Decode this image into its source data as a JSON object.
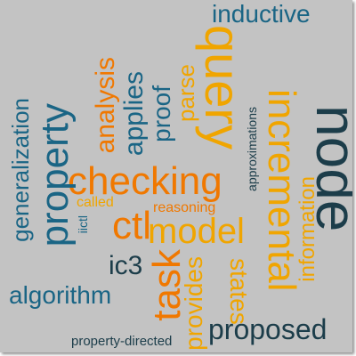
{
  "word_cloud": {
    "words": [
      {
        "text": "node",
        "color": "#1c3d4a",
        "orientation": "vertical-down"
      },
      {
        "text": "query",
        "color": "#f0a500",
        "orientation": "vertical-down"
      },
      {
        "text": "checking",
        "color": "#f07800",
        "orientation": "horizontal"
      },
      {
        "text": "ctl",
        "color": "#f07800",
        "orientation": "horizontal"
      },
      {
        "text": "model",
        "color": "#f0a500",
        "orientation": "horizontal"
      },
      {
        "text": "incremental",
        "color": "#f0a500",
        "orientation": "vertical-down"
      },
      {
        "text": "task",
        "color": "#f07800",
        "orientation": "vertical-up"
      },
      {
        "text": "property",
        "color": "#1a6585",
        "orientation": "vertical-up"
      },
      {
        "text": "inductive",
        "color": "#1a6585",
        "orientation": "horizontal"
      },
      {
        "text": "algorithm",
        "color": "#1a6585",
        "orientation": "horizontal"
      },
      {
        "text": "proposed",
        "color": "#1c3d4a",
        "orientation": "horizontal"
      },
      {
        "text": "generalization",
        "color": "#1a6585",
        "orientation": "vertical-up"
      },
      {
        "text": "applies",
        "color": "#1a6585",
        "orientation": "vertical-up"
      },
      {
        "text": "proof",
        "color": "#1a6585",
        "orientation": "vertical-up"
      },
      {
        "text": "analysis",
        "color": "#f07800",
        "orientation": "vertical-up"
      },
      {
        "text": "parse",
        "color": "#f0a500",
        "orientation": "vertical-up"
      },
      {
        "text": "states",
        "color": "#f0a500",
        "orientation": "vertical-down"
      },
      {
        "text": "information",
        "color": "#f0a500",
        "orientation": "vertical-up"
      },
      {
        "text": "provides",
        "color": "#f0a500",
        "orientation": "vertical-up"
      },
      {
        "text": "ic3",
        "color": "#1c3d4a",
        "orientation": "horizontal"
      },
      {
        "text": "reasoning",
        "color": "#f07800",
        "orientation": "horizontal"
      },
      {
        "text": "approximations",
        "color": "#1c3d4a",
        "orientation": "vertical-up"
      },
      {
        "text": "called",
        "color": "#f0a500",
        "orientation": "horizontal"
      },
      {
        "text": "iictl",
        "color": "#1a6585",
        "orientation": "vertical-up"
      },
      {
        "text": "property-directed",
        "color": "#1c3d4a",
        "orientation": "horizontal"
      }
    ]
  }
}
